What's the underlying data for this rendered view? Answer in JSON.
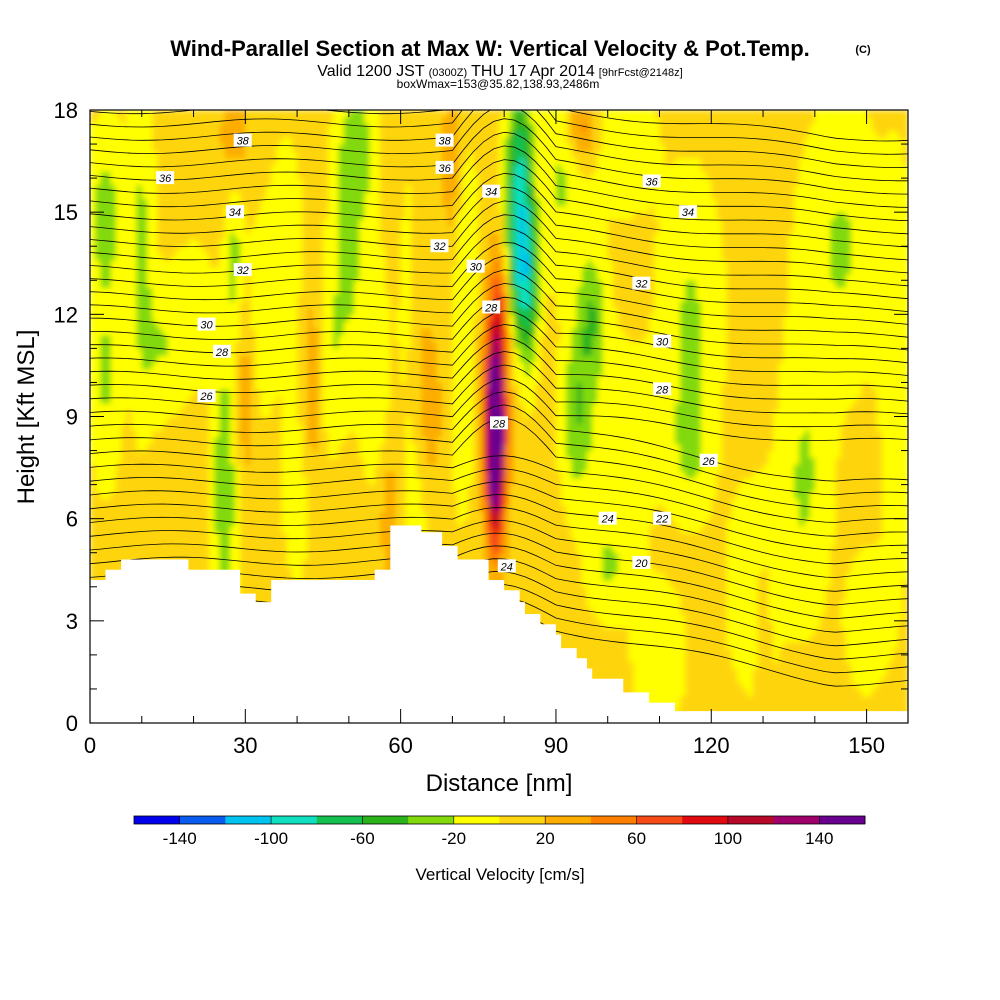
{
  "title": {
    "main": "Wind-Parallel Section at Max W: Vertical Velocity & Pot.Temp.",
    "copyright": "(C)",
    "valid_prefix": "Valid 1200 JST",
    "valid_utc": "(0300Z)",
    "valid_date": "THU 17 Apr 2014",
    "forecast": "[9hrFcst@2148z]",
    "boxwmax": "boxWmax=153@35.82,138.93,2486m"
  },
  "colorbar": {
    "title": "Vertical Velocity [cm/s]",
    "tick_labels": [
      "-140",
      "-100",
      "-60",
      "-20",
      "20",
      "60",
      "100",
      "140"
    ],
    "colors": [
      "#0000ee",
      "#0a5cf0",
      "#00c3f0",
      "#10e0c0",
      "#16c050",
      "#2cb21a",
      "#82d90c",
      "#ffff00",
      "#fed510",
      "#fcad00",
      "#ff8000",
      "#f64a18",
      "#e00a10",
      "#b8082a",
      "#a0006c",
      "#6a0090"
    ]
  },
  "chart_data": {
    "type": "heatmap",
    "xlabel": "Distance [nm]",
    "ylabel": "Height [Kft MSL]",
    "xlim": [
      0,
      158
    ],
    "ylim": [
      0,
      18
    ],
    "xticks": [
      0,
      30,
      60,
      90,
      120,
      150
    ],
    "yticks": [
      0,
      3,
      6,
      9,
      12,
      15,
      18
    ],
    "colorbar_range": [
      -160,
      160
    ],
    "colorbar_step": 20,
    "contour_variable": "Potential Temperature",
    "contour_levels": [
      20,
      22,
      24,
      26,
      28,
      30,
      32,
      34,
      36,
      38
    ],
    "contour_labels": [
      {
        "text": "38",
        "x": 29.5,
        "y": 17.1
      },
      {
        "text": "38",
        "x": 68.5,
        "y": 17.1
      },
      {
        "text": "36",
        "x": 14.5,
        "y": 16.0
      },
      {
        "text": "36",
        "x": 68.5,
        "y": 16.3
      },
      {
        "text": "36",
        "x": 108.5,
        "y": 15.9
      },
      {
        "text": "34",
        "x": 28.0,
        "y": 15.0
      },
      {
        "text": "34",
        "x": 77.5,
        "y": 15.6
      },
      {
        "text": "34",
        "x": 115.5,
        "y": 15.0
      },
      {
        "text": "32",
        "x": 29.5,
        "y": 13.3
      },
      {
        "text": "32",
        "x": 67.5,
        "y": 14.0
      },
      {
        "text": "32",
        "x": 106.5,
        "y": 12.9
      },
      {
        "text": "30",
        "x": 22.5,
        "y": 11.7
      },
      {
        "text": "30",
        "x": 74.5,
        "y": 13.4
      },
      {
        "text": "30",
        "x": 110.5,
        "y": 11.2
      },
      {
        "text": "28",
        "x": 25.5,
        "y": 10.9
      },
      {
        "text": "28",
        "x": 77.5,
        "y": 12.2
      },
      {
        "text": "28",
        "x": 110.5,
        "y": 9.8
      },
      {
        "text": "28",
        "x": 79.0,
        "y": 8.8
      },
      {
        "text": "26",
        "x": 22.5,
        "y": 9.6
      },
      {
        "text": "26",
        "x": 119.5,
        "y": 7.7
      },
      {
        "text": "24",
        "x": 100.0,
        "y": 6.0
      },
      {
        "text": "24",
        "x": 80.5,
        "y": 4.6
      },
      {
        "text": "22",
        "x": 110.5,
        "y": 6.0
      },
      {
        "text": "20",
        "x": 106.5,
        "y": 4.7
      }
    ],
    "terrain": [
      [
        0,
        4.2
      ],
      [
        3,
        4.2
      ],
      [
        3,
        4.5
      ],
      [
        6,
        4.5
      ],
      [
        6,
        4.8
      ],
      [
        19,
        4.8
      ],
      [
        19,
        4.5
      ],
      [
        29,
        4.5
      ],
      [
        29,
        3.8
      ],
      [
        32,
        3.8
      ],
      [
        32,
        3.55
      ],
      [
        35,
        3.55
      ],
      [
        35,
        4.2
      ],
      [
        55,
        4.2
      ],
      [
        55,
        4.5
      ],
      [
        58,
        4.5
      ],
      [
        58,
        5.8
      ],
      [
        64,
        5.8
      ],
      [
        64,
        5.6
      ],
      [
        68,
        5.6
      ],
      [
        68,
        5.2
      ],
      [
        71,
        5.2
      ],
      [
        71,
        4.8
      ],
      [
        77,
        4.8
      ],
      [
        77,
        4.2
      ],
      [
        80,
        4.2
      ],
      [
        80,
        3.9
      ],
      [
        83,
        3.9
      ],
      [
        83,
        3.55
      ],
      [
        84,
        3.55
      ],
      [
        84,
        3.2
      ],
      [
        87,
        3.2
      ],
      [
        87,
        2.9
      ],
      [
        90,
        2.9
      ],
      [
        90,
        2.6
      ],
      [
        91,
        2.6
      ],
      [
        91,
        2.2
      ],
      [
        94,
        2.2
      ],
      [
        94,
        1.9
      ],
      [
        96,
        1.9
      ],
      [
        96,
        1.6
      ],
      [
        97,
        1.6
      ],
      [
        97,
        1.3
      ],
      [
        103,
        1.3
      ],
      [
        103,
        0.9
      ],
      [
        108,
        0.9
      ],
      [
        108,
        0.6
      ],
      [
        113,
        0.6
      ],
      [
        113,
        0.35
      ],
      [
        158,
        0.35
      ]
    ]
  }
}
